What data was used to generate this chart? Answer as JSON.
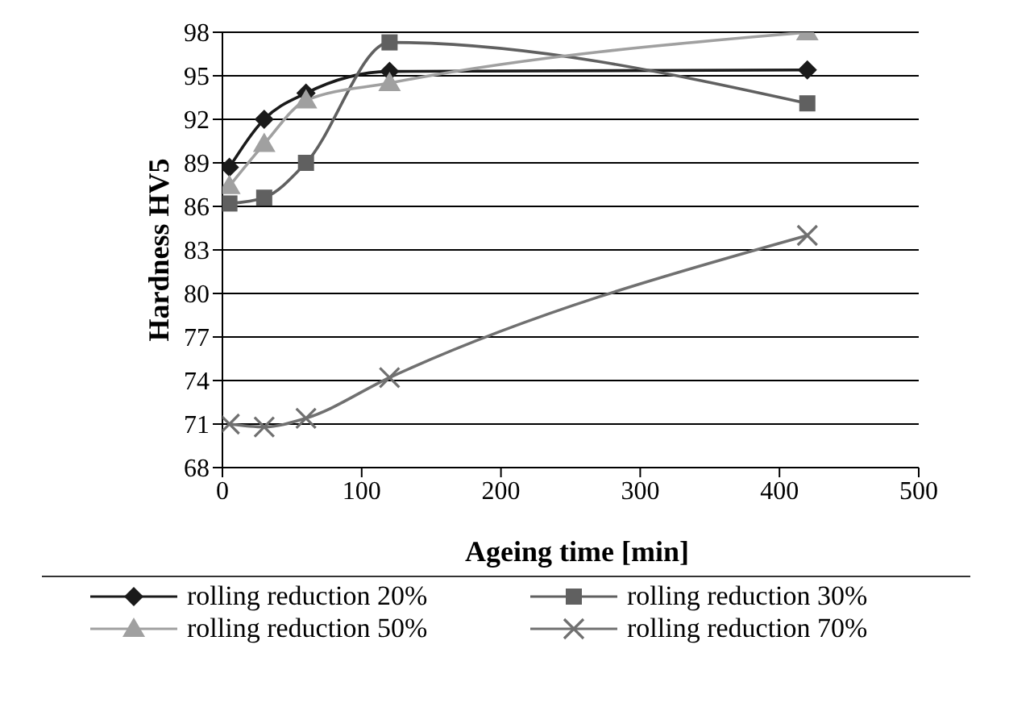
{
  "chart_data": {
    "type": "line",
    "xlabel": "Ageing time [min]",
    "ylabel": "Hardness HV5",
    "x": [
      5,
      30,
      60,
      120,
      420
    ],
    "xlim": [
      0,
      500
    ],
    "xticks": [
      0,
      100,
      200,
      300,
      400,
      500
    ],
    "ylim": [
      68,
      98
    ],
    "yticks": [
      68,
      71,
      74,
      77,
      80,
      83,
      86,
      89,
      92,
      95,
      98
    ],
    "grid": "y",
    "legend": "bottom",
    "series": [
      {
        "name": "rolling reduction 20%",
        "color": "#1a1a1a",
        "marker": "diamond",
        "values": [
          88.7,
          92.0,
          93.8,
          95.3,
          95.4
        ]
      },
      {
        "name": "rolling reduction 30%",
        "color": "#606060",
        "marker": "square",
        "values": [
          86.2,
          86.6,
          89.0,
          97.3,
          93.1
        ]
      },
      {
        "name": "rolling reduction 50%",
        "color": "#a0a0a0",
        "marker": "triangle",
        "values": [
          87.4,
          90.3,
          93.3,
          94.5,
          98.0
        ]
      },
      {
        "name": "rolling reduction 70%",
        "color": "#707070",
        "marker": "cross",
        "values": [
          71.0,
          70.8,
          71.4,
          74.2,
          84.0
        ]
      }
    ]
  }
}
